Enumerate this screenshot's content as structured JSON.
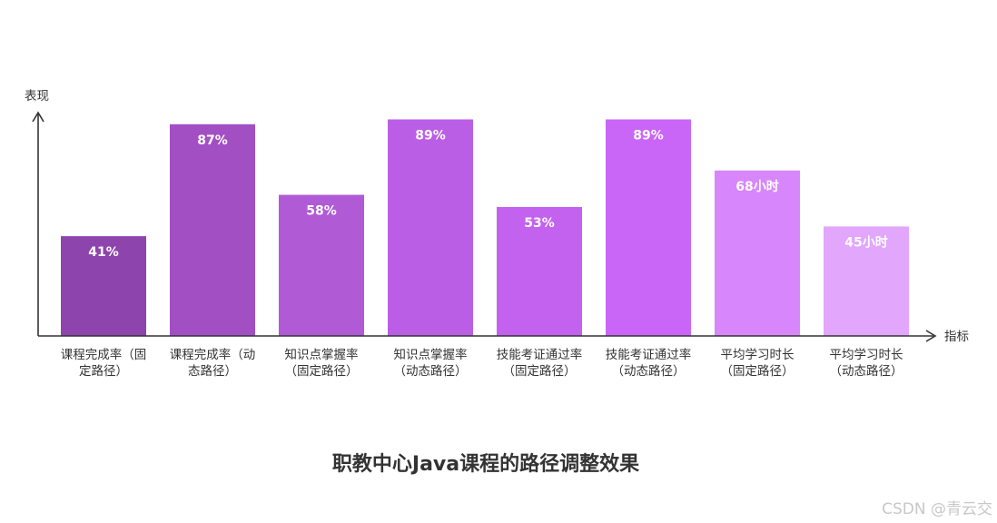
{
  "chart_data": {
    "type": "bar",
    "title": "职教中心Java课程的路径调整效果",
    "xlabel": "指标",
    "ylabel": "表现",
    "ylim": [
      0,
      100
    ],
    "grid": false,
    "categories": [
      [
        "课程完成率（固",
        "定路径）"
      ],
      [
        "课程完成率（动",
        "态路径）"
      ],
      [
        "知识点掌握率",
        "（固定路径）"
      ],
      [
        "知识点掌握率",
        "（动态路径）"
      ],
      [
        "技能考证通过率",
        "（固定路径）"
      ],
      [
        "技能考证通过率",
        "（动态路径）"
      ],
      [
        "平均学习时长",
        "（固定路径）"
      ],
      [
        "平均学习时长",
        "（动态路径）"
      ]
    ],
    "values": [
      41,
      87,
      58,
      89,
      53,
      89,
      68,
      45
    ],
    "data_labels": [
      "41%",
      "87%",
      "58%",
      "89%",
      "53%",
      "89%",
      "68小时",
      "45小时"
    ],
    "colors": [
      "#8e44ad",
      "#a34fc4",
      "#b05ad6",
      "#bb5ee6",
      "#c262ef",
      "#ca66f7",
      "#d886fb",
      "#e2a6fc"
    ]
  },
  "watermark": "CSDN @青云交"
}
